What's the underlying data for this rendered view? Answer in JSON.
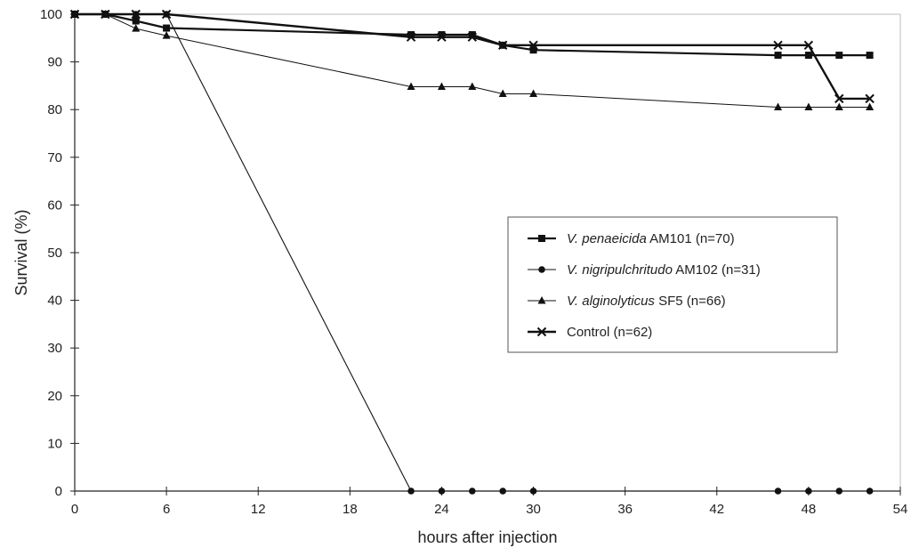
{
  "chart_data": {
    "type": "line",
    "title": "",
    "xlabel": "hours after injection",
    "ylabel": "Survival (%)",
    "xlim": [
      0,
      54
    ],
    "ylim": [
      0,
      100
    ],
    "xticks": [
      0,
      6,
      12,
      18,
      24,
      30,
      36,
      42,
      48,
      54
    ],
    "yticks": [
      0,
      10,
      20,
      30,
      40,
      50,
      60,
      70,
      80,
      90,
      100
    ],
    "grid": false,
    "legend_position": "center-right",
    "series": [
      {
        "name": "V. penaeicida AM101 (n=70)",
        "legend_parts": [
          {
            "text": "V. penaeicida",
            "italic": true
          },
          {
            "text": " AM101 (n=70)",
            "italic": false
          }
        ],
        "marker": "square",
        "x": [
          0,
          2,
          4,
          6,
          22,
          24,
          26,
          28,
          30,
          46,
          48,
          50,
          52
        ],
        "y": [
          100,
          100,
          98.6,
          97.1,
          95.7,
          95.7,
          95.7,
          93.5,
          92.5,
          91.4,
          91.4,
          91.4,
          91.4
        ]
      },
      {
        "name": "V. nigripulchritudo AM102 (n=31)",
        "legend_parts": [
          {
            "text": "V. nigripulchritudo",
            "italic": true
          },
          {
            "text": " AM102 (n=31)",
            "italic": false
          }
        ],
        "marker": "circle",
        "x": [
          0,
          2,
          4,
          6,
          22,
          24,
          26,
          28,
          30,
          46,
          48,
          50,
          52
        ],
        "y": [
          100,
          100,
          100,
          100,
          0,
          0,
          0,
          0,
          0,
          0,
          0,
          0,
          0
        ]
      },
      {
        "name": "V. alginolyticus SF5 (n=66)",
        "legend_parts": [
          {
            "text": "V. alginolyticus",
            "italic": true
          },
          {
            "text": " SF5 (n=66)",
            "italic": false
          }
        ],
        "marker": "triangle",
        "x": [
          0,
          2,
          4,
          6,
          22,
          24,
          26,
          28,
          30,
          46,
          48,
          50,
          52
        ],
        "y": [
          100,
          100,
          97,
          95.5,
          84.8,
          84.8,
          84.8,
          83.3,
          83.3,
          80.5,
          80.5,
          80.5,
          80.5
        ]
      },
      {
        "name": "Control (n=62)",
        "legend_parts": [
          {
            "text": "Control (n=62)",
            "italic": false
          }
        ],
        "marker": "x",
        "x": [
          0,
          2,
          4,
          6,
          22,
          24,
          26,
          28,
          30,
          46,
          48,
          50,
          52
        ],
        "y": [
          100,
          100,
          100,
          100,
          95.2,
          95.2,
          95.2,
          93.5,
          93.5,
          93.5,
          93.5,
          82.3,
          82.3
        ]
      }
    ]
  }
}
